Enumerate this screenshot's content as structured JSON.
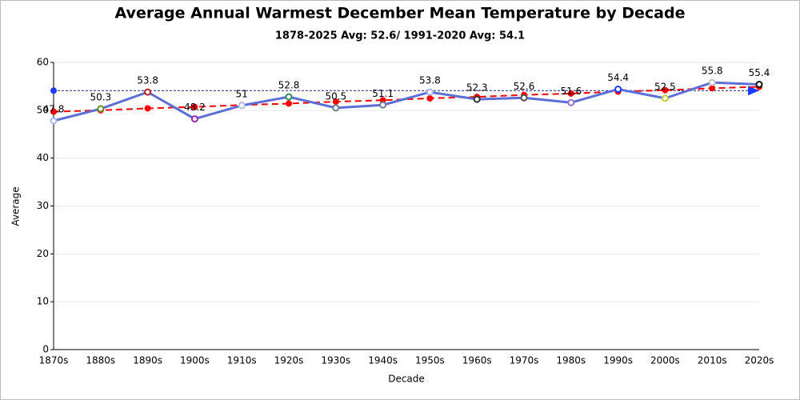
{
  "chart_data": {
    "type": "line",
    "title": "Average Annual Warmest December Mean Temperature by Decade",
    "subtitle": "1878-2025 Avg: 52.6/ 1991-2020 Avg: 54.1",
    "x_label": "Decade",
    "y_label": "Average",
    "categories": [
      "1870s",
      "1880s",
      "1890s",
      "1900s",
      "1910s",
      "1920s",
      "1930s",
      "1940s",
      "1950s",
      "1960s",
      "1970s",
      "1980s",
      "1990s",
      "2000s",
      "2010s",
      "2020s"
    ],
    "series": [
      {
        "color": "#5b6fd6",
        "values": [
          47.8,
          50.3,
          53.8,
          48.2,
          51,
          52.8,
          50.5,
          51.1,
          53.8,
          52.3,
          52.6,
          51.6,
          54.4,
          52.5,
          55.8,
          55.4
        ],
        "data_labels": true,
        "marker_colors": [
          "#aab4ee",
          "#6b8e23",
          "#b22222",
          "#9c27b0",
          "#b0c4de",
          "#2e8b57",
          "#708090",
          "#708090",
          "#aab4ee",
          "#333333",
          "#555555",
          "#9575cd",
          "#1e3cff",
          "#c0ca33",
          "#c0c0c0",
          "#111111"
        ]
      },
      {
        "color": "#ff0000",
        "dashed": true,
        "values": [
          49.7,
          50.0,
          50.4,
          50.7,
          51.1,
          51.4,
          51.8,
          52.1,
          52.5,
          52.8,
          53.2,
          53.5,
          53.9,
          54.2,
          54.6,
          54.9
        ],
        "data_labels": false
      }
    ],
    "hline": {
      "value": 54.1,
      "color": "#1a237e"
    },
    "ylim": [
      0,
      60
    ],
    "yticks": [
      0,
      10,
      20,
      30,
      40,
      50,
      60
    ],
    "grid": true
  }
}
